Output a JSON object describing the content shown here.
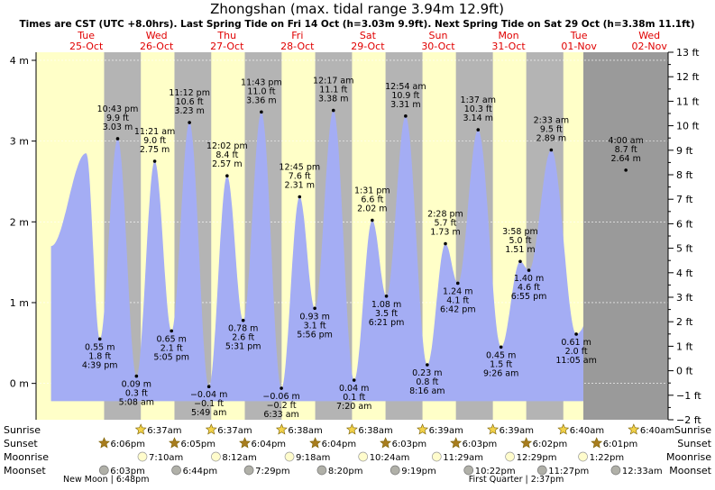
{
  "chart_data": {
    "type": "area",
    "title": "Zhongshan (max. tidal range 3.94m 12.9ft)",
    "subtitle": "Times are CST (UTC +8.0hrs). Last Spring Tide on Fri 14 Oct (h=3.03m 9.9ft). Next Spring Tide on Sat 29 Oct (h=3.38m 11.1ft)",
    "ylabel_left": "m",
    "ylabel_right": "ft",
    "ylim_m": [
      -0.45,
      4.1
    ],
    "ylim_ft": [
      -2,
      13
    ],
    "left_ticks": [
      {
        "v": 0,
        "label": "0 m"
      },
      {
        "v": 1,
        "label": "1 m"
      },
      {
        "v": 2,
        "label": "2 m"
      },
      {
        "v": 3,
        "label": "3 m"
      },
      {
        "v": 4,
        "label": "4 m"
      }
    ],
    "right_ticks": [
      {
        "v": -2,
        "label": "−2 ft"
      },
      {
        "v": -1,
        "label": "−1 ft"
      },
      {
        "v": 0,
        "label": "0 ft"
      },
      {
        "v": 1,
        "label": "1 ft"
      },
      {
        "v": 2,
        "label": "2 ft"
      },
      {
        "v": 3,
        "label": "3 ft"
      },
      {
        "v": 4,
        "label": "4 ft"
      },
      {
        "v": 5,
        "label": "5 ft"
      },
      {
        "v": 6,
        "label": "6 ft"
      },
      {
        "v": 7,
        "label": "7 ft"
      },
      {
        "v": 8,
        "label": "8 ft"
      },
      {
        "v": 9,
        "label": "9 ft"
      },
      {
        "v": 10,
        "label": "10 ft"
      },
      {
        "v": 11,
        "label": "11 ft"
      },
      {
        "v": 12,
        "label": "12 ft"
      },
      {
        "v": 13,
        "label": "13 ft"
      }
    ],
    "days": [
      {
        "dow": "Tue",
        "date": "25-Oct"
      },
      {
        "dow": "Wed",
        "date": "26-Oct"
      },
      {
        "dow": "Thu",
        "date": "27-Oct"
      },
      {
        "dow": "Fri",
        "date": "28-Oct"
      },
      {
        "dow": "Sat",
        "date": "29-Oct"
      },
      {
        "dow": "Sun",
        "date": "30-Oct"
      },
      {
        "dow": "Mon",
        "date": "31-Oct"
      },
      {
        "dow": "Tue",
        "date": "01-Nov"
      },
      {
        "dow": "Wed",
        "date": "02-Nov"
      }
    ],
    "range_hours": [
      -5.1,
      210.4
    ],
    "series_start_hour": 0,
    "series_end_hour": 181.5,
    "sunrise_hours": [
      30.62,
      54.62,
      78.63,
      102.63,
      126.65,
      150.65,
      174.67,
      198.67
    ],
    "sunset_hours": [
      18.1,
      42.08,
      66.07,
      90.07,
      114.05,
      138.05,
      162.03,
      186.02
    ],
    "tides": [
      {
        "hours": 12.0,
        "m": 2.85
      },
      {
        "hours": 16.65,
        "m": 0.55,
        "time": "4:39 pm",
        "height_m": "0.55 m",
        "height_ft": "1.8 ft"
      },
      {
        "hours": 22.72,
        "m": 3.03,
        "time": "10:43 pm",
        "height_m": "3.03 m",
        "height_ft": "9.9 ft"
      },
      {
        "hours": 29.13,
        "m": 0.09,
        "time": "5:08 am",
        "height_m": "0.09 m",
        "height_ft": "0.3 ft"
      },
      {
        "hours": 35.35,
        "m": 2.75,
        "time": "11:21 am",
        "height_m": "2.75 m",
        "height_ft": "9.0 ft"
      },
      {
        "hours": 41.08,
        "m": 0.65,
        "time": "5:05 pm",
        "height_m": "0.65 m",
        "height_ft": "2.1 ft"
      },
      {
        "hours": 47.2,
        "m": 3.23,
        "time": "11:12 pm",
        "height_m": "3.23 m",
        "height_ft": "10.6 ft"
      },
      {
        "hours": 53.82,
        "m": -0.04,
        "time": "5:49 am",
        "height_m": "−0.04 m",
        "height_ft": "−0.1 ft"
      },
      {
        "hours": 60.03,
        "m": 2.57,
        "time": "12:02 pm",
        "height_m": "2.57 m",
        "height_ft": "8.4 ft"
      },
      {
        "hours": 65.52,
        "m": 0.78,
        "time": "5:31 pm",
        "height_m": "0.78 m",
        "height_ft": "2.6 ft"
      },
      {
        "hours": 71.72,
        "m": 3.36,
        "time": "11:43 pm",
        "height_m": "3.36 m",
        "height_ft": "11.0 ft"
      },
      {
        "hours": 78.55,
        "m": -0.06,
        "time": "6:33 am",
        "height_m": "−0.06 m",
        "height_ft": "−0.2 ft"
      },
      {
        "hours": 84.75,
        "m": 2.31,
        "time": "12:45 pm",
        "height_m": "2.31 m",
        "height_ft": "7.6 ft"
      },
      {
        "hours": 89.93,
        "m": 0.93,
        "time": "5:56 pm",
        "height_m": "0.93 m",
        "height_ft": "3.1 ft"
      },
      {
        "hours": 96.28,
        "m": 3.38,
        "time": "12:17 am",
        "height_m": "3.38 m",
        "height_ft": "11.1 ft"
      },
      {
        "hours": 103.33,
        "m": 0.04,
        "time": "7:20 am",
        "height_m": "0.04 m",
        "height_ft": "0.1 ft"
      },
      {
        "hours": 109.52,
        "m": 2.02,
        "time": "1:31 pm",
        "height_m": "2.02 m",
        "height_ft": "6.6 ft"
      },
      {
        "hours": 114.35,
        "m": 1.08,
        "time": "6:21 pm",
        "height_m": "1.08 m",
        "height_ft": "3.5 ft"
      },
      {
        "hours": 120.9,
        "m": 3.31,
        "time": "12:54 am",
        "height_m": "3.31 m",
        "height_ft": "10.9 ft"
      },
      {
        "hours": 128.27,
        "m": 0.23,
        "time": "8:16 am",
        "height_m": "0.23 m",
        "height_ft": "0.8 ft"
      },
      {
        "hours": 134.47,
        "m": 1.73,
        "time": "2:28 pm",
        "height_m": "1.73 m",
        "height_ft": "5.7 ft"
      },
      {
        "hours": 138.7,
        "m": 1.24,
        "time": "6:42 pm",
        "height_m": "1.24 m",
        "height_ft": "4.1 ft"
      },
      {
        "hours": 145.62,
        "m": 3.14,
        "time": "1:37 am",
        "height_m": "3.14 m",
        "height_ft": "10.3 ft"
      },
      {
        "hours": 153.43,
        "m": 0.45,
        "time": "9:26 am",
        "height_m": "0.45 m",
        "height_ft": "1.5 ft"
      },
      {
        "hours": 159.97,
        "m": 1.51,
        "time": "3:58 pm",
        "height_m": "1.51 m",
        "height_ft": "5.0 ft"
      },
      {
        "hours": 162.92,
        "m": 1.4,
        "time": "6:55 pm",
        "height_m": "1.40 m",
        "height_ft": "4.6 ft"
      },
      {
        "hours": 170.55,
        "m": 2.89,
        "time": "2:33 am",
        "height_m": "2.89 m",
        "height_ft": "9.5 ft"
      },
      {
        "hours": 179.08,
        "m": 0.61,
        "time": "11:05 am",
        "height_m": "0.61 m",
        "height_ft": "2.0 ft"
      },
      {
        "hours": 196.0,
        "m": 2.64,
        "time": "4:00 am",
        "height_m": "2.64 m",
        "height_ft": "8.7 ft"
      }
    ],
    "bottom_rows": {
      "labels": [
        "Sunrise",
        "Sunset",
        "Moonrise",
        "Moonset"
      ],
      "sunrise": [
        {
          "hours": 30.62,
          "time": "6:37am"
        },
        {
          "hours": 54.62,
          "time": "6:37am"
        },
        {
          "hours": 78.63,
          "time": "6:38am"
        },
        {
          "hours": 102.63,
          "time": "6:38am"
        },
        {
          "hours": 126.65,
          "time": "6:39am"
        },
        {
          "hours": 150.65,
          "time": "6:39am"
        },
        {
          "hours": 174.67,
          "time": "6:40am"
        },
        {
          "hours": 198.67,
          "time": "6:40am"
        }
      ],
      "sunset": [
        {
          "hours": 18.1,
          "time": "6:06pm"
        },
        {
          "hours": 42.08,
          "time": "6:05pm"
        },
        {
          "hours": 66.07,
          "time": "6:04pm"
        },
        {
          "hours": 90.07,
          "time": "6:04pm"
        },
        {
          "hours": 114.05,
          "time": "6:03pm"
        },
        {
          "hours": 138.05,
          "time": "6:03pm"
        },
        {
          "hours": 162.03,
          "time": "6:02pm"
        },
        {
          "hours": 186.02,
          "time": "6:01pm"
        }
      ],
      "moonrise": [
        {
          "hours": 31.17,
          "time": "7:10am"
        },
        {
          "hours": 56.2,
          "time": "8:12am"
        },
        {
          "hours": 81.3,
          "time": "9:18am"
        },
        {
          "hours": 106.4,
          "time": "10:24am"
        },
        {
          "hours": 131.48,
          "time": "11:29am"
        },
        {
          "hours": 156.48,
          "time": "12:29pm"
        },
        {
          "hours": 181.37,
          "time": "1:22pm"
        }
      ],
      "moonset": [
        {
          "hours": 18.05,
          "time": "6:03pm"
        },
        {
          "hours": 42.73,
          "time": "6:44pm"
        },
        {
          "hours": 67.48,
          "time": "7:29pm"
        },
        {
          "hours": 92.33,
          "time": "8:20pm"
        },
        {
          "hours": 117.32,
          "time": "9:19pm"
        },
        {
          "hours": 142.37,
          "time": "10:22pm"
        },
        {
          "hours": 167.45,
          "time": "11:27pm"
        },
        {
          "hours": 192.55,
          "time": "12:33am"
        }
      ],
      "phases": [
        {
          "hours": 18.8,
          "text": "New Moon | 6:48pm"
        },
        {
          "hours": 158.62,
          "text": "First Quarter | 2:37pm"
        }
      ]
    }
  }
}
